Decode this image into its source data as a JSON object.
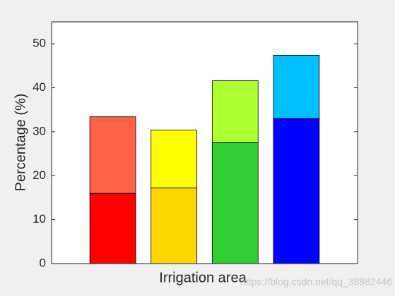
{
  "chart_data": {
    "type": "stacked_bar",
    "ylabel": "Percentage (%)",
    "xlabel": "Irrigation area",
    "watermark": "https://blog.csdn.net/qq_38882446",
    "categories": [
      null,
      null,
      null,
      null
    ],
    "xlim": [
      0,
      5
    ],
    "series": [
      {
        "colors": [
          "#ff0000",
          "#ffd700",
          "#32cd32",
          "#0000ff"
        ],
        "values": [
          16,
          17.2,
          27.5,
          33
        ]
      },
      {
        "colors": [
          "#ff6347",
          "#ffff00",
          "#adff2f",
          "#00bfff"
        ],
        "values": [
          17.4,
          13.2,
          14.1,
          14.4
        ]
      }
    ],
    "ylim": [
      0,
      55
    ],
    "yticks": [
      0,
      10,
      20,
      30,
      40,
      50
    ],
    "grid": false
  }
}
